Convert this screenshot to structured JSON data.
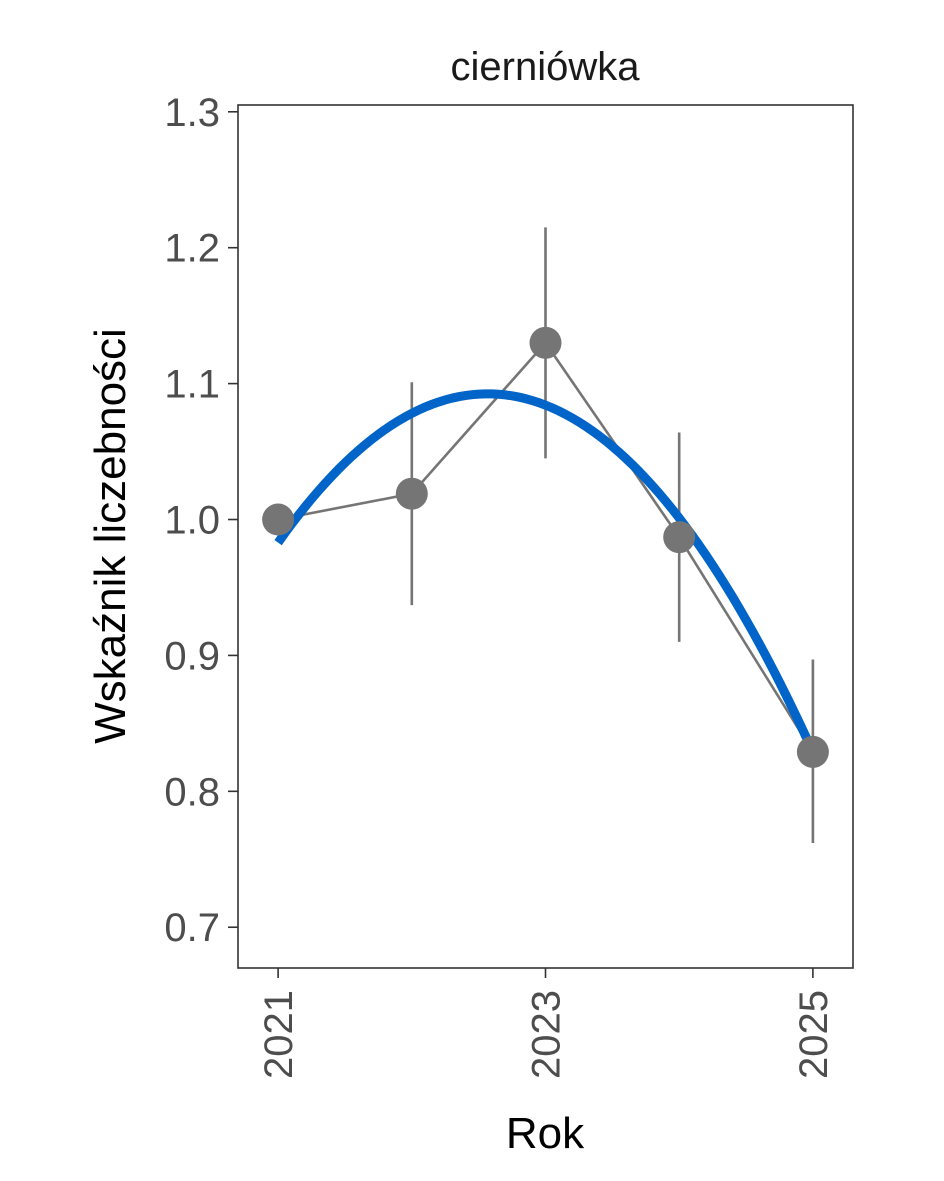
{
  "chart_data": {
    "type": "line",
    "title": "cierniówka",
    "xlabel": "Rok",
    "ylabel": "Wskaźnik liczebności",
    "xlim": [
      2020.7,
      2025.3
    ],
    "ylim": [
      0.67,
      1.305
    ],
    "x_ticks": [
      2021,
      2023,
      2025
    ],
    "y_ticks": [
      0.7,
      0.8,
      0.9,
      1.0,
      1.1,
      1.2,
      1.3
    ],
    "y_tick_labels": [
      "0.7",
      "0.8",
      "0.9",
      "1.0",
      "1.1",
      "1.2",
      "1.3"
    ],
    "grid": false,
    "series": [
      {
        "kind": "points-with-errorbars",
        "color": "#757575",
        "x": [
          2021,
          2022,
          2023,
          2024,
          2025
        ],
        "y": [
          1.0,
          1.019,
          1.13,
          0.987,
          0.829
        ],
        "lower": [
          null,
          0.937,
          1.045,
          0.91,
          0.762
        ],
        "upper": [
          null,
          1.101,
          1.215,
          1.064,
          0.897
        ]
      },
      {
        "kind": "trend",
        "color": "#0064C8",
        "x": [
          2021,
          2022.75,
          2025
        ],
        "y": [
          0.983,
          1.091,
          0.829
        ]
      }
    ]
  }
}
